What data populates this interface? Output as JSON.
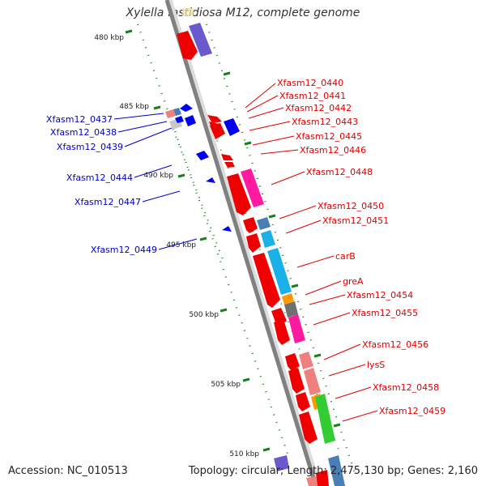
{
  "title": "Xylella fastidiosa M12, complete genome",
  "footer": {
    "accession": "Accession: NC_010513",
    "summary": "Topology: circular; Length: 2,475,130 bp; Genes: 2,160"
  },
  "scale_labels": [
    "480 kbp",
    "485 kbp",
    "490 kbp",
    "495 kbp",
    "500 kbp",
    "505 kbp",
    "510 kbp"
  ],
  "colors": {
    "backbone": "#808080",
    "ticks": "#1a7f1a",
    "forward_label": "#e00000",
    "reverse_label": "#0000c8",
    "gene_red": "#ee0000",
    "gene_blue": "#0000ee",
    "gene_pink": "#ff1aa0",
    "gene_purple": "#6a5acd",
    "gene_sky": "#1ab0e8",
    "gene_steel": "#4a7fb5",
    "gene_salmon": "#f08080",
    "gene_orange": "#ff9900",
    "gene_gray": "#707070",
    "gene_green": "#33cc33",
    "gene_silver": "#c8c8c8"
  },
  "forward_labels": [
    "Xfasm12_0440",
    "Xfasm12_0441",
    "Xfasm12_0442",
    "Xfasm12_0443",
    "Xfasm12_0445",
    "Xfasm12_0446",
    "Xfasm12_0448",
    "Xfasm12_0450",
    "Xfasm12_0451",
    "carB",
    "greA",
    "Xfasm12_0454",
    "Xfasm12_0455",
    "Xfasm12_0456",
    "lysS",
    "Xfasm12_0458",
    "Xfasm12_0459"
  ],
  "reverse_labels": [
    "Xfasm12_0437",
    "Xfasm12_0438",
    "Xfasm12_0439",
    "Xfasm12_0444",
    "Xfasm12_0447",
    "Xfasm12_0449"
  ]
}
